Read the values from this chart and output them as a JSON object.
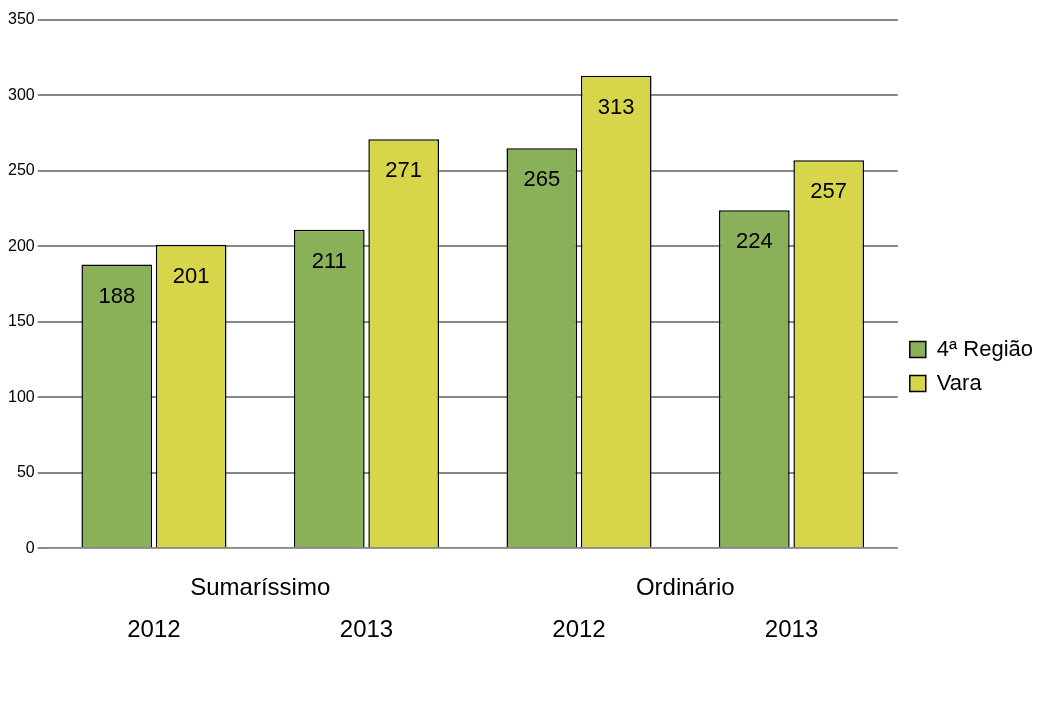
{
  "chart_data": {
    "type": "bar",
    "categories": [
      "2012",
      "2013",
      "2012",
      "2013"
    ],
    "series": [
      {
        "name": "4ª Região",
        "color": "#8ab15a",
        "values": [
          188,
          211,
          265,
          224
        ]
      },
      {
        "name": "Vara",
        "color": "#d7d64b",
        "values": [
          201,
          271,
          313,
          257
        ]
      }
    ],
    "annotations": [
      "Sumaríssimo",
      "Ordinário"
    ],
    "ylim": [
      0,
      350
    ],
    "yticks": [
      0,
      50,
      100,
      150,
      200,
      250,
      300,
      350
    ],
    "grid": "y",
    "legend": "right",
    "data_labels": true
  }
}
